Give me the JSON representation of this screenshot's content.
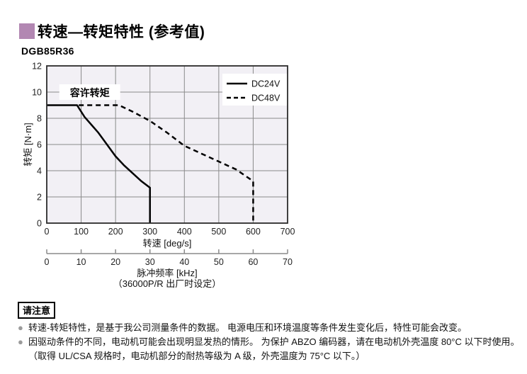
{
  "page": {
    "title": "转速—转矩特性 (参考值)",
    "model": "DGB85R36",
    "accent_color": "#b287b2"
  },
  "chart_data": {
    "type": "line",
    "xlabel": "转速 [deg/s]",
    "ylabel": "转矩 [N·m]",
    "x2label": "脉冲频率 [kHz]",
    "x2note": "（36000P/R 出厂时设定）",
    "xlim": [
      0,
      700
    ],
    "ylim": [
      0,
      12
    ],
    "x2lim": [
      0,
      70
    ],
    "xticks": [
      0,
      100,
      200,
      300,
      400,
      500,
      600,
      700
    ],
    "yticks": [
      0,
      2,
      4,
      6,
      8,
      10,
      12
    ],
    "x2ticks": [
      0,
      10,
      20,
      30,
      40,
      50,
      60,
      70
    ],
    "grid": true,
    "plot_bg": "#f2f0f5",
    "grid_color": "#8a8a8a",
    "border_color": "#2b2b2b",
    "line_color": "#000000",
    "annotation": {
      "text": "容许转矩",
      "x": 125,
      "y": 10
    },
    "legend": {
      "position": "top-right"
    },
    "series": [
      {
        "name": "DC24V",
        "style": "solid",
        "points": [
          [
            0,
            9
          ],
          [
            88,
            9
          ],
          [
            110,
            8.1
          ],
          [
            130,
            7.5
          ],
          [
            150,
            6.9
          ],
          [
            175,
            6.0
          ],
          [
            200,
            5.1
          ],
          [
            225,
            4.4
          ],
          [
            250,
            3.8
          ],
          [
            275,
            3.2
          ],
          [
            300,
            2.7
          ],
          [
            300,
            0
          ]
        ]
      },
      {
        "name": "DC48V",
        "style": "dashed",
        "points": [
          [
            93,
            9
          ],
          [
            210,
            9
          ],
          [
            250,
            8.5
          ],
          [
            300,
            7.8
          ],
          [
            350,
            6.9
          ],
          [
            400,
            5.9
          ],
          [
            450,
            5.3
          ],
          [
            500,
            4.7
          ],
          [
            550,
            4.1
          ],
          [
            600,
            3.2
          ],
          [
            600,
            0
          ]
        ]
      }
    ]
  },
  "notes": {
    "label": "请注意",
    "bullet_glyph": "●",
    "items": [
      {
        "bullet": true,
        "text": "转速-转矩特性，是基于我公司测量条件的数据。 电源电压和环境温度等条件发生变化后，特性可能会改变。"
      },
      {
        "bullet": true,
        "text": "因驱动条件的不同，电动机可能会出现明显发热的情形。 为保护 ABZO 编码器，请在电动机外壳温度 80°C 以下时使用。"
      },
      {
        "bullet": false,
        "text": "（取得 UL/CSA 规格时，电动机部分的耐热等级为 A 级，外壳温度为 75°C 以下。）"
      }
    ]
  }
}
